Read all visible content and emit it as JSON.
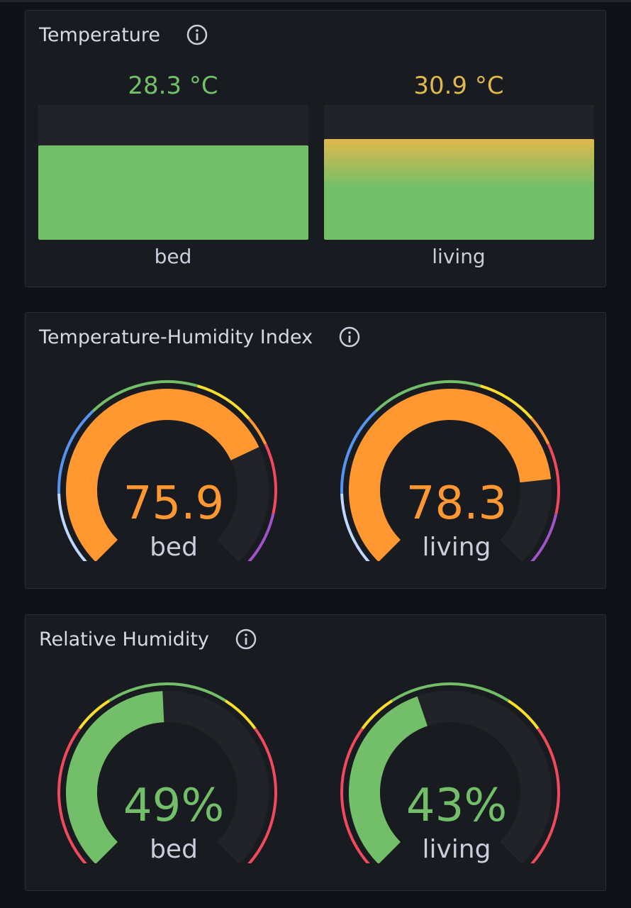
{
  "panels": {
    "temperature": {
      "title": "Temperature",
      "bars": [
        {
          "label": "bed",
          "value_text": "28.3 °C",
          "fraction": 0.7,
          "color": "#73bf69",
          "gradient": false
        },
        {
          "label": "living",
          "value_text": "30.9 °C",
          "fraction": 0.75,
          "color": "#e0b84b",
          "gradient": true
        }
      ]
    },
    "thi": {
      "title": "Temperature-Humidity Index",
      "gauges": [
        {
          "label": "bed",
          "value_text": "75.9",
          "fraction": 0.74,
          "color": "#ff9830"
        },
        {
          "label": "living",
          "value_text": "78.3",
          "fraction": 0.81,
          "color": "#ff9830"
        }
      ]
    },
    "humidity": {
      "title": "Relative Humidity",
      "gauges": [
        {
          "label": "bed",
          "value_text": "49%",
          "fraction": 0.49,
          "color": "#73bf69"
        },
        {
          "label": "living",
          "value_text": "43%",
          "fraction": 0.43,
          "color": "#73bf69"
        }
      ]
    }
  },
  "colors": {
    "green": "#73bf69",
    "yellow": "#fade2a",
    "orange": "#ff9830",
    "red": "#f2495c",
    "purple": "#a352cc",
    "blue": "#5794f2",
    "light_blue": "#c0d8ff",
    "track": "#222329"
  },
  "icons": {
    "info": "info-circle-icon"
  }
}
